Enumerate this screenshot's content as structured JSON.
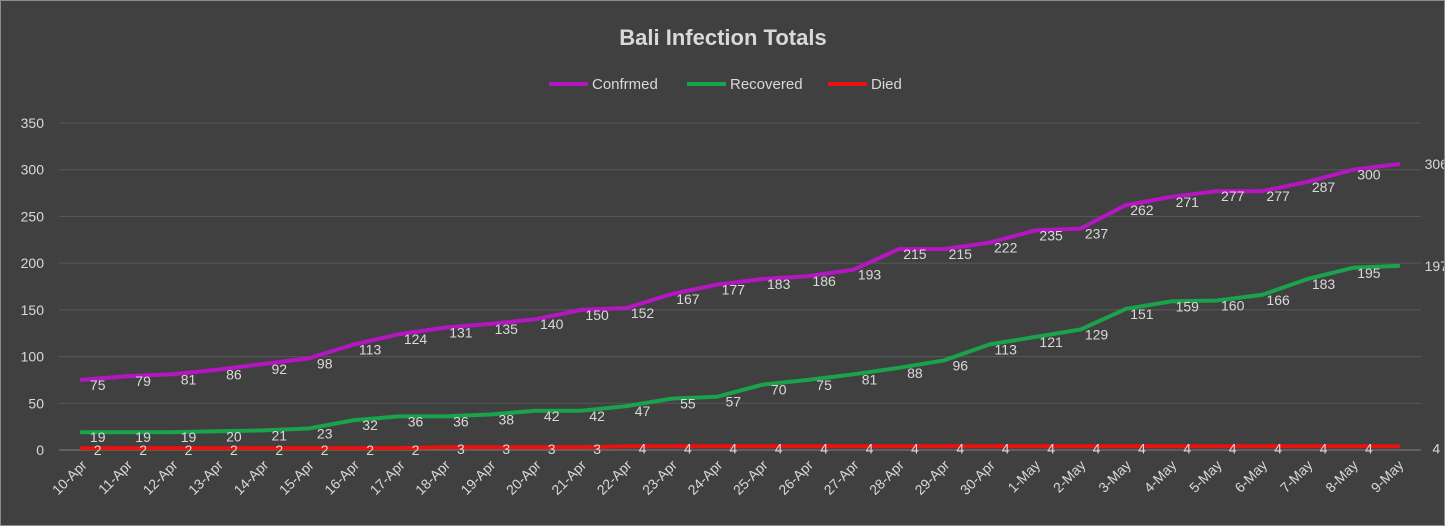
{
  "chart_data": {
    "type": "line",
    "title": "Bali Infection Totals",
    "xlabel": "",
    "ylabel": "",
    "categories": [
      "10-Apr",
      "11-Apr",
      "12-Apr",
      "13-Apr",
      "14-Apr",
      "15-Apr",
      "16-Apr",
      "17-Apr",
      "18-Apr",
      "19-Apr",
      "20-Apr",
      "21-Apr",
      "22-Apr",
      "23-Apr",
      "24-Apr",
      "25-Apr",
      "26-Apr",
      "27-Apr",
      "28-Apr",
      "29-Apr",
      "30-Apr",
      "1-May",
      "2-May",
      "3-May",
      "4-May",
      "5-May",
      "6-May",
      "7-May",
      "8-May",
      "9-May"
    ],
    "ylim": [
      0,
      350
    ],
    "yticks": [
      0,
      50,
      100,
      150,
      200,
      250,
      300,
      350
    ],
    "grid": true,
    "legend_position": "top",
    "series": [
      {
        "name": "Confrmed",
        "color": "#b616c2",
        "values": [
          75,
          79,
          81,
          86,
          92,
          98,
          113,
          124,
          131,
          135,
          140,
          150,
          152,
          167,
          177,
          183,
          186,
          193,
          215,
          215,
          222,
          235,
          237,
          262,
          271,
          277,
          277,
          287,
          300,
          306
        ]
      },
      {
        "name": "Recovered",
        "color": "#1aa24d",
        "values": [
          19,
          19,
          19,
          20,
          21,
          23,
          32,
          36,
          36,
          38,
          42,
          42,
          47,
          55,
          57,
          70,
          75,
          81,
          88,
          96,
          113,
          121,
          129,
          151,
          159,
          160,
          166,
          183,
          195,
          197
        ]
      },
      {
        "name": "Died",
        "color": "#e8130e",
        "values": [
          2,
          2,
          2,
          2,
          2,
          2,
          2,
          2,
          3,
          3,
          3,
          3,
          4,
          4,
          4,
          4,
          4,
          4,
          4,
          4,
          4,
          4,
          4,
          4,
          4,
          4,
          4,
          4,
          4,
          4
        ]
      }
    ]
  }
}
